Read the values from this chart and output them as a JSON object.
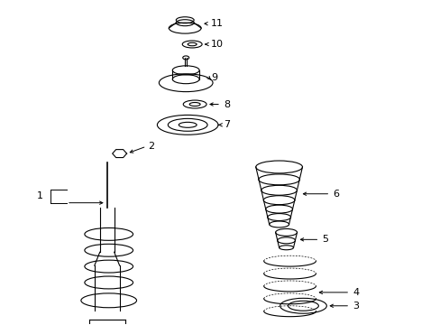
{
  "background_color": "#ffffff",
  "line_color": "#000000",
  "label_color": "#000000",
  "fig_width": 4.89,
  "fig_height": 3.6,
  "dpi": 100,
  "label_fontsize": 8,
  "lw": 0.8
}
